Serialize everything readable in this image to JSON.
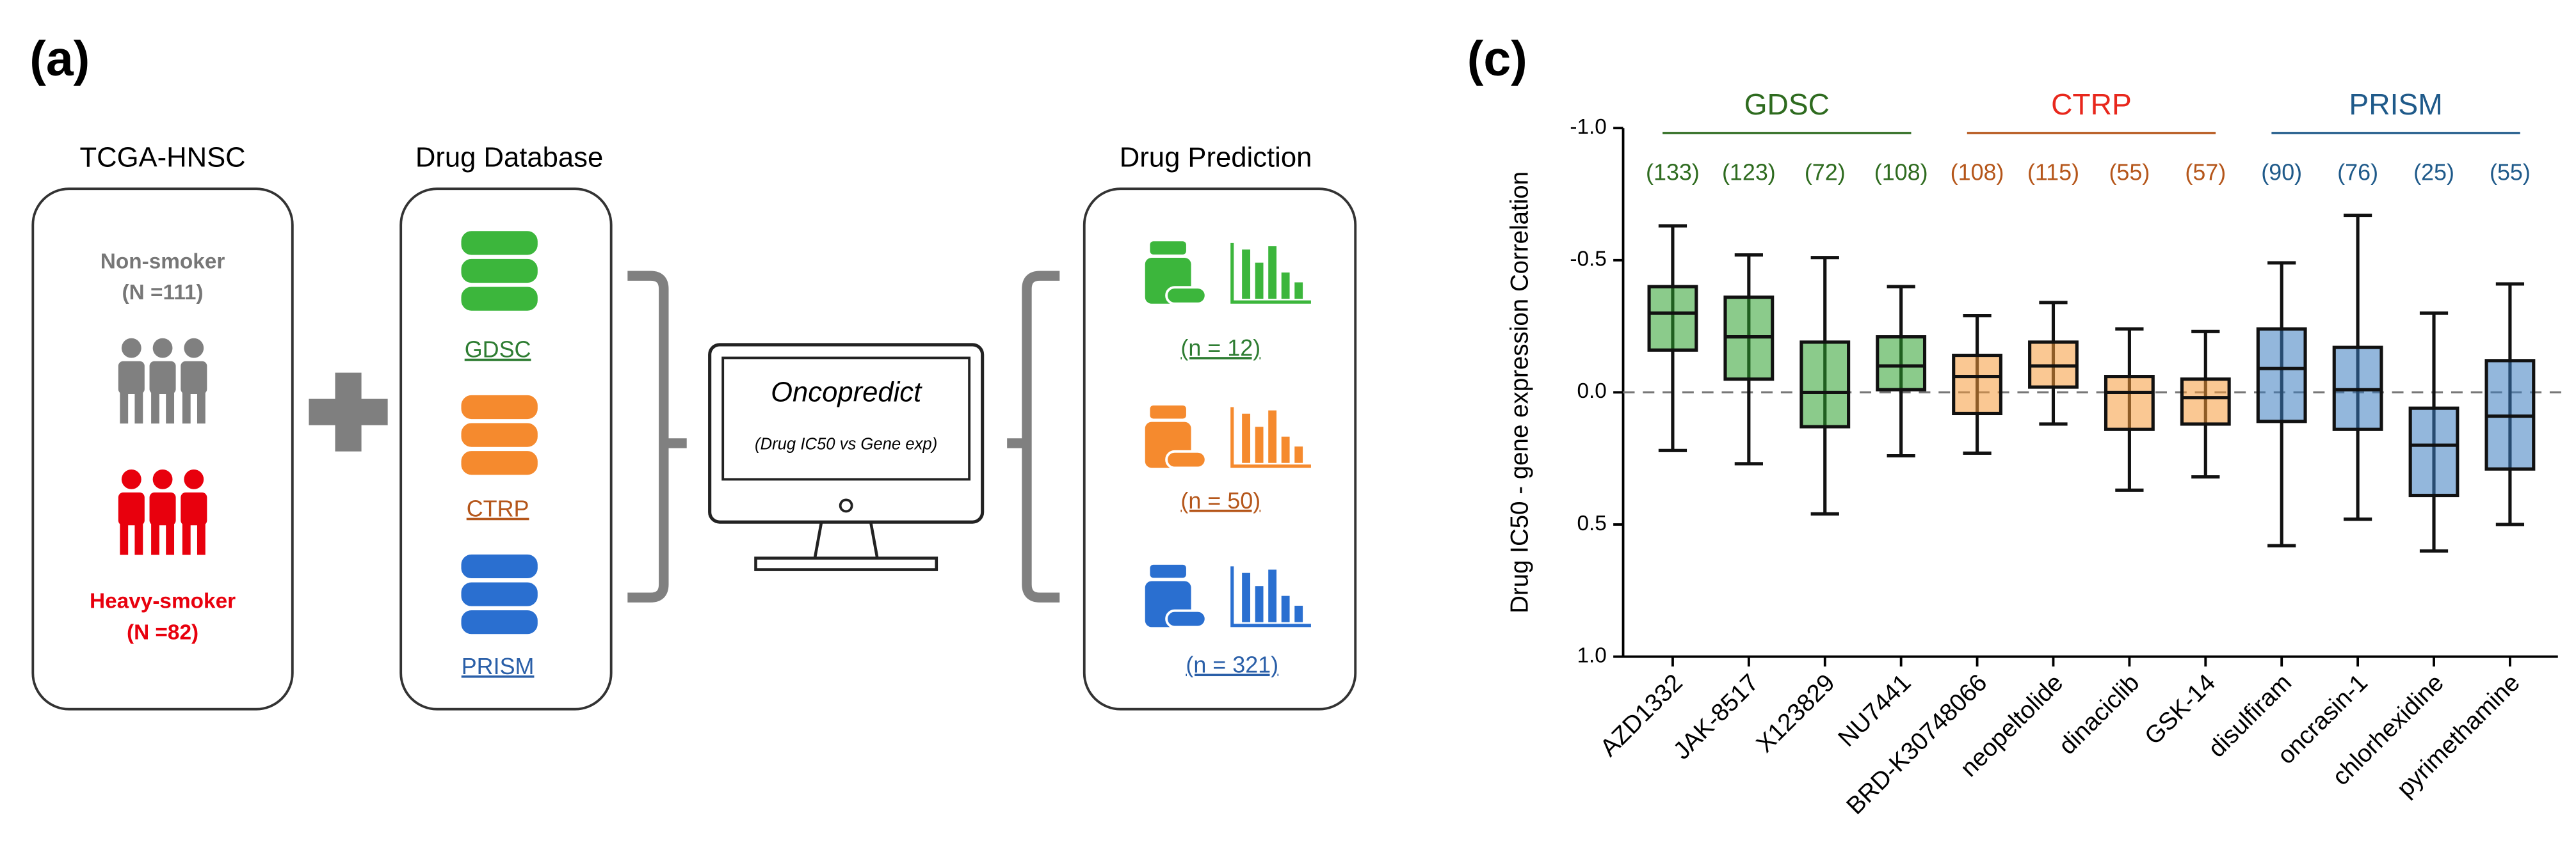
{
  "diagram": {
    "panel_a": "(a)",
    "cohort": {
      "title": "TCGA-HNSC",
      "group1": "Non-smoker",
      "group1_n": "(N =111)",
      "group2": "Heavy-smoker",
      "group2_n": "(N =82)"
    },
    "database": {
      "title": "Drug  Database",
      "items": [
        "GDSC",
        "CTRP",
        "PRISM"
      ]
    },
    "tool": {
      "name": "Oncopredict",
      "note": "(Drug IC50 vs Gene exp)"
    },
    "prediction": {
      "title": "Drug Prediction",
      "items": [
        "(n = 12)",
        "(n = 50)",
        "(n = 321)"
      ]
    }
  },
  "chart_data": {
    "type": "box",
    "panel": "(c)",
    "y_label": "Drug IC50 - gene expression Correlation",
    "ylim": [
      -1.0,
      1.0
    ],
    "y_inverted": true,
    "yticks": [
      {
        "value": -1,
        "label": "-1.0"
      },
      {
        "value": -0.5,
        "label": "-0.5"
      },
      {
        "value": 0,
        "label": "0.0"
      },
      {
        "value": 0.5,
        "label": "0.5"
      },
      {
        "value": 1,
        "label": "1.0"
      }
    ],
    "reference_line": 0,
    "series": [
      {
        "name": "GDSC",
        "color": "#2ca02c",
        "label_color": "#2e6b1f",
        "categories": [
          "AZD1332",
          "JAK-8517",
          "X123829",
          "NU7441"
        ],
        "n_labels": [
          "(133)",
          "(123)",
          "(72)",
          "(108)"
        ],
        "boxes": [
          {
            "min": -0.63,
            "q1": -0.4,
            "median": -0.3,
            "q3": -0.16,
            "max": 0.22
          },
          {
            "min": -0.52,
            "q1": -0.36,
            "median": -0.21,
            "q3": -0.05,
            "max": 0.27
          },
          {
            "min": -0.51,
            "q1": -0.19,
            "median": 0.0,
            "q3": 0.13,
            "max": 0.46
          },
          {
            "min": -0.4,
            "q1": -0.21,
            "median": -0.1,
            "q3": -0.01,
            "max": 0.24
          }
        ]
      },
      {
        "name": "CTRP",
        "color": "#f59a3a",
        "label_color": "#b5561a",
        "title_color": "#e8271c",
        "categories": [
          "BRD-K30748066",
          "neopeltolide",
          "dinaciclib",
          "GSK-14"
        ],
        "n_labels": [
          "(108)",
          "(115)",
          "(55)",
          "(57)"
        ],
        "boxes": [
          {
            "min": -0.29,
            "q1": -0.14,
            "median": -0.06,
            "q3": 0.08,
            "max": 0.23
          },
          {
            "min": -0.34,
            "q1": -0.19,
            "median": -0.1,
            "q3": -0.02,
            "max": 0.12
          },
          {
            "min": -0.24,
            "q1": -0.06,
            "median": 0.0,
            "q3": 0.14,
            "max": 0.37
          },
          {
            "min": -0.23,
            "q1": -0.05,
            "median": 0.02,
            "q3": 0.12,
            "max": 0.32
          }
        ]
      },
      {
        "name": "PRISM",
        "color": "#3a7bbf",
        "label_color": "#1f5a8a",
        "categories": [
          "disulfiram",
          "oncrasin-1",
          "chlorhexidine",
          "pyrimethamine"
        ],
        "n_labels": [
          "(90)",
          "(76)",
          "(25)",
          "(55)"
        ],
        "boxes": [
          {
            "min": -0.49,
            "q1": -0.24,
            "median": -0.09,
            "q3": 0.11,
            "max": 0.58
          },
          {
            "min": -0.67,
            "q1": -0.17,
            "median": -0.01,
            "q3": 0.14,
            "max": 0.48
          },
          {
            "min": -0.3,
            "q1": 0.06,
            "median": 0.2,
            "q3": 0.39,
            "max": 0.6
          },
          {
            "min": -0.41,
            "q1": -0.12,
            "median": 0.09,
            "q3": 0.29,
            "max": 0.5
          }
        ]
      }
    ]
  }
}
